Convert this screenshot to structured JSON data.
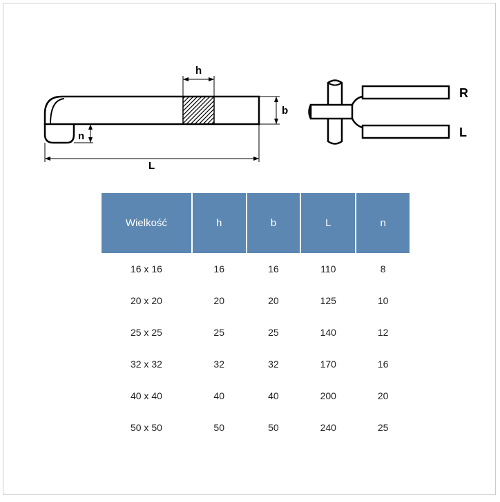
{
  "diagram": {
    "labels": {
      "h": "h",
      "b": "b",
      "L": "L",
      "n": "n",
      "R": "R",
      "Lside": "L"
    },
    "colors": {
      "stroke": "#000000",
      "fill_hatch": "#000000",
      "line_width": 2
    }
  },
  "table": {
    "header_bg": "#5c87b2",
    "header_fg": "#ffffff",
    "columns": [
      "Wielkość",
      "h",
      "b",
      "L",
      "n"
    ],
    "rows": [
      [
        "16 x 16",
        "16",
        "16",
        "110",
        "8"
      ],
      [
        "20 x 20",
        "20",
        "20",
        "125",
        "10"
      ],
      [
        "25 x 25",
        "25",
        "25",
        "140",
        "12"
      ],
      [
        "32 x 32",
        "32",
        "32",
        "170",
        "16"
      ],
      [
        "40 x 40",
        "40",
        "40",
        "200",
        "20"
      ],
      [
        "50 x 50",
        "50",
        "50",
        "240",
        "25"
      ]
    ]
  }
}
